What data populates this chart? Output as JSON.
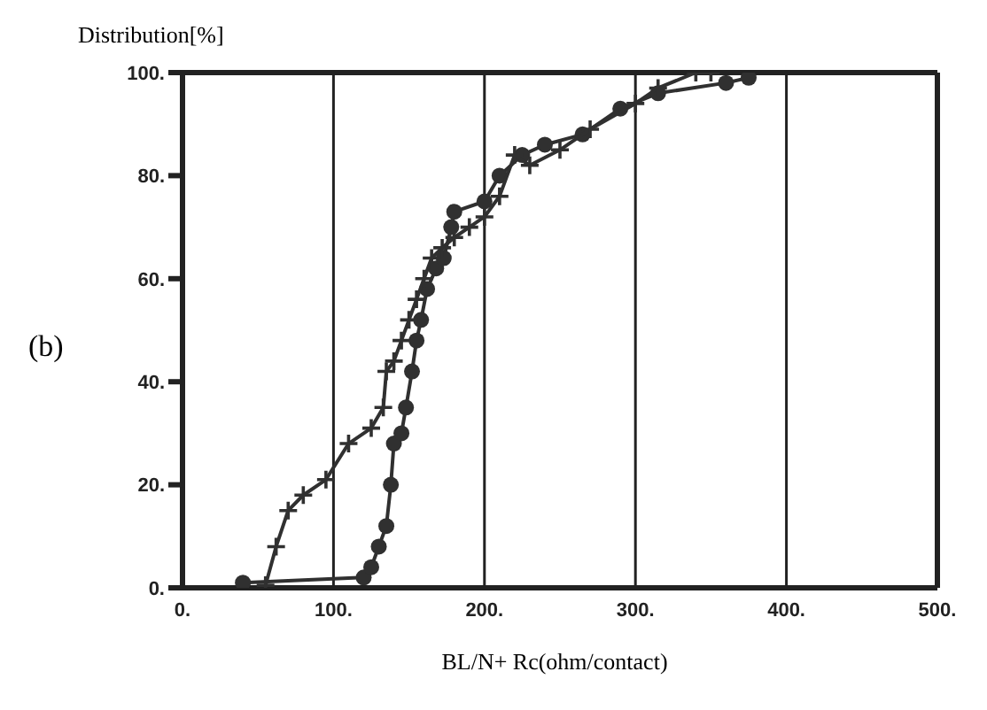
{
  "chart_data": {
    "type": "line",
    "xlabel": "BL/N+ Rc(ohm/contact)",
    "ylabel": "Distribution[%]",
    "annotations": [
      "(b)"
    ],
    "xlim": [
      0,
      500
    ],
    "xticks": [
      {
        "value": 0,
        "label": "0."
      },
      {
        "value": 100,
        "label": "100."
      },
      {
        "value": 200,
        "label": "200."
      },
      {
        "value": 300,
        "label": "300."
      },
      {
        "value": 400,
        "label": "400."
      },
      {
        "value": 500,
        "label": "500."
      }
    ],
    "ylim": [
      0,
      100
    ],
    "yticks": [
      {
        "value": 0,
        "label": "0."
      },
      {
        "value": 20,
        "label": "20."
      },
      {
        "value": 40,
        "label": "40."
      },
      {
        "value": 60,
        "label": "60."
      },
      {
        "value": 80,
        "label": "80."
      },
      {
        "value": 100,
        "label": "100."
      }
    ],
    "grid": "x",
    "legend": false,
    "line_style": "solid",
    "series": [
      {
        "color": "#303030",
        "marker": "circle",
        "x": [
          40,
          120,
          125,
          130,
          135,
          138,
          140,
          145,
          148,
          152,
          155,
          158,
          162,
          168,
          173,
          178,
          180,
          200,
          210,
          225,
          240,
          265,
          290,
          315,
          360,
          375
        ],
        "values": [
          1,
          2,
          4,
          8,
          12,
          20,
          28,
          30,
          35,
          42,
          48,
          52,
          58,
          62,
          64,
          70,
          73,
          75,
          80,
          84,
          86,
          88,
          93,
          96,
          98,
          99
        ]
      },
      {
        "color": "#303030",
        "marker": "cross",
        "x": [
          55,
          62,
          70,
          80,
          95,
          110,
          125,
          133,
          135,
          140,
          145,
          150,
          155,
          160,
          165,
          172,
          180,
          190,
          200,
          210,
          220,
          230,
          250,
          270,
          300,
          315,
          340,
          350
        ],
        "values": [
          0.5,
          8,
          15,
          18,
          21,
          28,
          31,
          35,
          42,
          44,
          48,
          52,
          56,
          60,
          64,
          66,
          68,
          70,
          72,
          76,
          84,
          82,
          85,
          89,
          94,
          97,
          100,
          100
        ]
      }
    ]
  }
}
